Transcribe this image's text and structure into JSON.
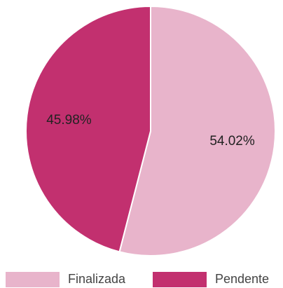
{
  "chart_data": {
    "type": "pie",
    "categories": [
      "Finalizada",
      "Pendente"
    ],
    "values": [
      54.02,
      45.98
    ],
    "value_labels": [
      "54.02%",
      "45.98%"
    ],
    "colors": [
      "#e8b4cb",
      "#c2306f"
    ],
    "legend": "bottom"
  }
}
